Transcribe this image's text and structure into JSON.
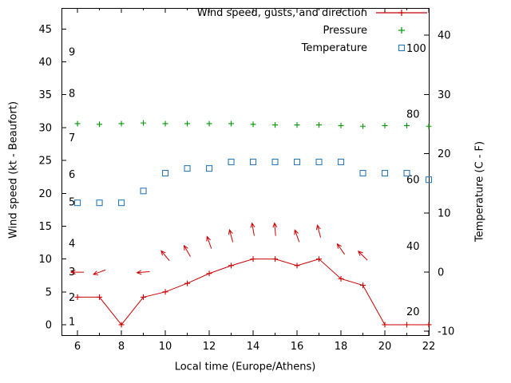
{
  "chart_data": {
    "type": "line",
    "xlabel": "Local time (Europe/Athens)",
    "ylabel": "Wind speed (kt - Beaufort)",
    "y2label": "Temperature (C - F)",
    "x_range": [
      5.27,
      22
    ],
    "x_ticks": [
      6,
      8,
      10,
      12,
      14,
      16,
      18,
      20,
      22
    ],
    "x_minor_ticks": [
      7,
      9,
      11,
      13,
      15,
      17,
      19,
      21
    ],
    "y_left_range": [
      -1.58,
      48.2
    ],
    "y_left_ticks": [
      0,
      5,
      10,
      15,
      20,
      25,
      30,
      35,
      40,
      45
    ],
    "y_right_range": [
      -10.65,
      44.6
    ],
    "y_right_ticks": [
      -10,
      0,
      10,
      20,
      30,
      40
    ],
    "grid": false,
    "legend_position": "top-right-inside",
    "colors": {
      "wind": "#cc0000",
      "pressure": "#009a00",
      "temperature": "#2b7bb9",
      "axis": "#000000",
      "background": "#ffffff"
    },
    "legend": [
      {
        "label": "Wind speed, gusts, and direction",
        "series": "wind",
        "marker": "line-plus"
      },
      {
        "label": "Pressure",
        "series": "pressure",
        "marker": "plus"
      },
      {
        "label": "Temperature",
        "series": "temperature",
        "marker": "open-square"
      }
    ],
    "beaufort_labels": [
      {
        "label": "1",
        "kt": 0.5
      },
      {
        "label": "2",
        "kt": 4.2
      },
      {
        "label": "3",
        "kt": 8.1
      },
      {
        "label": "4",
        "kt": 12.4
      },
      {
        "label": "5",
        "kt": 18.7
      },
      {
        "label": "6",
        "kt": 22.9
      },
      {
        "label": "7",
        "kt": 28.5
      },
      {
        "label": "8",
        "kt": 35.2
      },
      {
        "label": "9",
        "kt": 41.5
      }
    ],
    "fahrenheit_labels": [
      {
        "label": "20",
        "c": -6.7
      },
      {
        "label": "40",
        "c": 4.4
      },
      {
        "label": "60",
        "c": 15.6
      },
      {
        "label": "80",
        "c": 26.7
      },
      {
        "label": "100",
        "c": 37.8
      }
    ],
    "hours": [
      6,
      7,
      8,
      9,
      10,
      11,
      12,
      13,
      14,
      15,
      16,
      17,
      18,
      19,
      20,
      21,
      22
    ],
    "wind_speed_kt": [
      4.2,
      4.2,
      0,
      4.2,
      5.0,
      6.3,
      7.8,
      9.0,
      10.0,
      10.0,
      9.0,
      10.0,
      7.0,
      6.0,
      0,
      0,
      0
    ],
    "pressure_plotted": [
      30.6,
      30.5,
      30.6,
      30.7,
      30.6,
      30.6,
      30.6,
      30.6,
      30.5,
      30.4,
      30.4,
      30.4,
      30.3,
      30.2,
      30.3,
      30.3,
      30.2
    ],
    "temperature_c": [
      11.7,
      11.7,
      11.7,
      13.7,
      16.7,
      17.5,
      17.5,
      18.6,
      18.6,
      18.6,
      18.6,
      18.6,
      18.6,
      16.7,
      16.7,
      16.7,
      15.6
    ],
    "wind_gusts": [
      {
        "t": 6,
        "kt": 8.0,
        "dir_deg": 270
      },
      {
        "t": 7,
        "kt": 8.0,
        "dir_deg": 250
      },
      {
        "t": 9,
        "kt": 8.0,
        "dir_deg": 265
      },
      {
        "t": 10,
        "kt": 10.5,
        "dir_deg": 320
      },
      {
        "t": 11,
        "kt": 11.2,
        "dir_deg": 330
      },
      {
        "t": 12,
        "kt": 12.5,
        "dir_deg": 340
      },
      {
        "t": 13,
        "kt": 13.5,
        "dir_deg": 345
      },
      {
        "t": 14,
        "kt": 14.5,
        "dir_deg": 350
      },
      {
        "t": 15,
        "kt": 14.5,
        "dir_deg": 355
      },
      {
        "t": 16,
        "kt": 13.5,
        "dir_deg": 340
      },
      {
        "t": 17,
        "kt": 14.2,
        "dir_deg": 345
      },
      {
        "t": 18,
        "kt": 11.5,
        "dir_deg": 325
      },
      {
        "t": 19,
        "kt": 10.5,
        "dir_deg": 315
      }
    ]
  }
}
